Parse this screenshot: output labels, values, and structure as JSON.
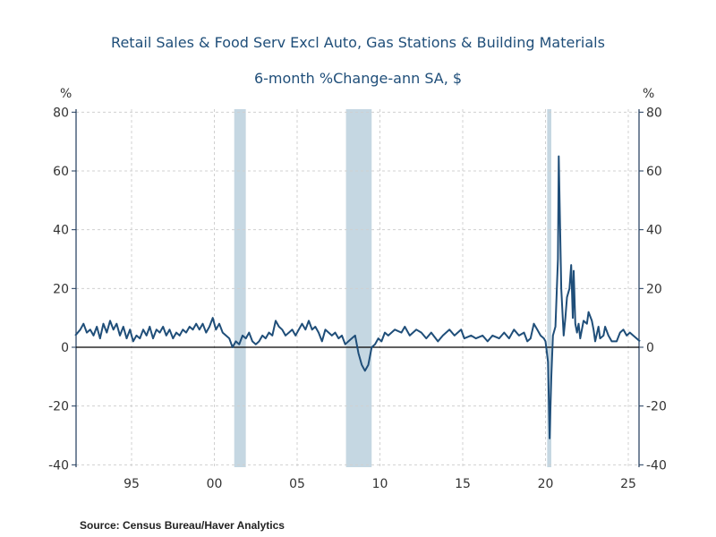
{
  "chart_data": {
    "type": "line",
    "title": "Retail Sales & Food Serv Excl Auto, Gas Stations & Building Materials",
    "subtitle": "6-month %Change-ann     SA, $",
    "ylabel_left": "%",
    "ylabel_right": "%",
    "ylim": [
      -40,
      80
    ],
    "yticks": [
      -40,
      -20,
      0,
      20,
      40,
      60,
      80
    ],
    "xlim": [
      1991.5,
      2025.7
    ],
    "xticks": [
      1995,
      2000,
      2005,
      2010,
      2015,
      2020,
      2025
    ],
    "xtick_labels": [
      "95",
      "00",
      "05",
      "10",
      "15",
      "20",
      "25"
    ],
    "grid": true,
    "line_color": "#1f4e79",
    "recession_color": "#c5d7e2",
    "recessions": [
      [
        2001.2,
        2001.9
      ],
      [
        2007.95,
        2009.5
      ],
      [
        2020.1,
        2020.35
      ]
    ],
    "series": [
      {
        "x": [
          1991.6,
          1991.9,
          1992.1,
          1992.3,
          1992.5,
          1992.7,
          1992.9,
          1993.1,
          1993.3,
          1993.5,
          1993.7,
          1993.9,
          1994.1,
          1994.3,
          1994.5,
          1994.7,
          1994.9,
          1995.1,
          1995.3,
          1995.5,
          1995.7,
          1995.9,
          1996.1,
          1996.3,
          1996.5,
          1996.7,
          1996.9,
          1997.1,
          1997.3,
          1997.5,
          1997.7,
          1997.9,
          1998.1,
          1998.3,
          1998.5,
          1998.7,
          1998.9,
          1999.1,
          1999.3,
          1999.5,
          1999.7,
          1999.9,
          2000.1,
          2000.3,
          2000.5,
          2000.7,
          2000.9,
          2001.1,
          2001.3,
          2001.5,
          2001.7,
          2001.9,
          2002.1,
          2002.3,
          2002.5,
          2002.7,
          2002.9,
          2003.1,
          2003.3,
          2003.5,
          2003.7,
          2003.9,
          2004.1,
          2004.3,
          2004.5,
          2004.7,
          2004.9,
          2005.1,
          2005.3,
          2005.5,
          2005.7,
          2005.9,
          2006.1,
          2006.3,
          2006.5,
          2006.7,
          2006.9,
          2007.1,
          2007.3,
          2007.5,
          2007.7,
          2007.9,
          2008.1,
          2008.3,
          2008.5,
          2008.7,
          2008.9,
          2009.1,
          2009.3,
          2009.5,
          2009.7,
          2009.9,
          2010.1,
          2010.3,
          2010.5,
          2010.9,
          2011.3,
          2011.5,
          2011.8,
          2012.2,
          2012.5,
          2012.8,
          2013.1,
          2013.5,
          2013.8,
          2014.2,
          2014.5,
          2014.9,
          2015.1,
          2015.5,
          2015.8,
          2016.2,
          2016.5,
          2016.8,
          2017.2,
          2017.5,
          2017.8,
          2018.1,
          2018.4,
          2018.7,
          2018.9,
          2019.1,
          2019.3,
          2019.5,
          2019.7,
          2019.9,
          2020.0,
          2020.15,
          2020.25,
          2020.35,
          2020.45,
          2020.6,
          2020.75,
          2020.8,
          2020.95,
          2021.1,
          2021.2,
          2021.3,
          2021.45,
          2021.55,
          2021.65,
          2021.7,
          2021.8,
          2021.9,
          2022.0,
          2022.1,
          2022.3,
          2022.5,
          2022.6,
          2022.8,
          2022.9,
          2023.0,
          2023.2,
          2023.3,
          2023.5,
          2023.6,
          2023.8,
          2024.0,
          2024.3,
          2024.5,
          2024.7,
          2024.9,
          2025.1,
          2025.3,
          2025.5,
          2025.7
        ],
        "y": [
          4,
          6,
          8,
          5,
          6,
          4,
          7,
          3,
          8,
          5,
          9,
          6,
          8,
          4,
          7,
          3,
          6,
          2,
          4,
          3,
          6,
          4,
          7,
          3,
          6,
          5,
          7,
          4,
          6,
          3,
          5,
          4,
          6,
          5,
          7,
          6,
          8,
          6,
          8,
          5,
          7,
          10,
          6,
          8,
          5,
          4,
          3,
          0,
          2,
          1,
          4,
          3,
          5,
          2,
          1,
          2,
          4,
          3,
          5,
          4,
          9,
          7,
          6,
          4,
          5,
          6,
          4,
          6,
          8,
          6,
          9,
          6,
          7,
          5,
          2,
          6,
          5,
          4,
          5,
          3,
          4,
          1,
          2,
          3,
          4,
          -2,
          -6,
          -8,
          -6,
          0,
          1,
          3,
          2,
          5,
          4,
          6,
          5,
          7,
          4,
          6,
          5,
          3,
          5,
          2,
          4,
          6,
          4,
          6,
          3,
          4,
          3,
          4,
          2,
          4,
          3,
          5,
          3,
          6,
          4,
          5,
          2,
          3,
          8,
          6,
          4,
          3,
          2,
          -5,
          -31,
          -10,
          4,
          7,
          30,
          65,
          20,
          4,
          10,
          17,
          20,
          28,
          10,
          26,
          8,
          5,
          8,
          3,
          9,
          8,
          12,
          9,
          6,
          2,
          7,
          3,
          4,
          7,
          4,
          2,
          2,
          5,
          6,
          4,
          5,
          4,
          3,
          2
        ]
      }
    ]
  },
  "source": "Source:  Census Bureau/Haver Analytics"
}
